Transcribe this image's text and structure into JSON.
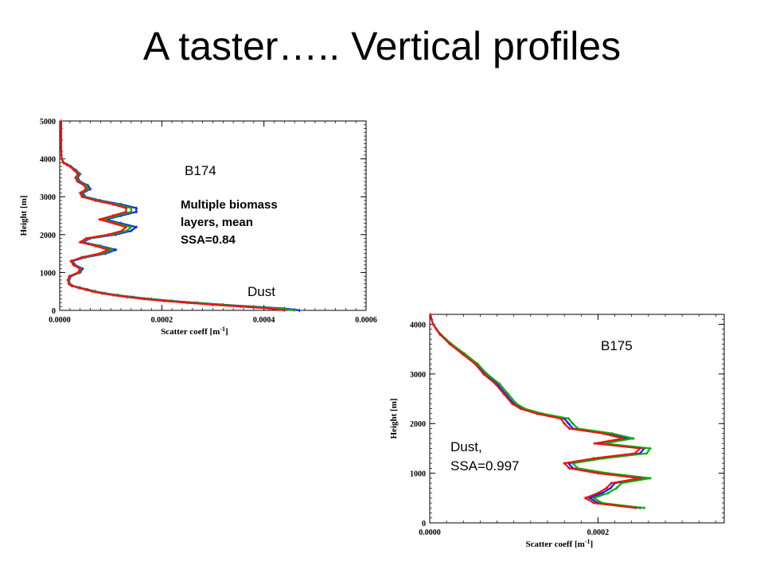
{
  "slide": {
    "title": "A taster….. Vertical profiles"
  },
  "colors": {
    "series_red": "#ee1111",
    "series_green": "#11aa11",
    "series_blue": "#1122ee"
  },
  "chart_data": [
    {
      "id": "b174",
      "type": "scatter",
      "xlabel": "Scatter coeff [m",
      "xlabel_sup": "-1",
      "xlabel_end": "]",
      "ylabel": "Height [m]",
      "xlim": [
        0,
        0.0006
      ],
      "ylim": [
        0,
        5000
      ],
      "xticks": [
        0,
        0.0002,
        0.0004,
        0.0006
      ],
      "xtick_labels": [
        "0.0000",
        "0.0002",
        "0.0004",
        "0.0006"
      ],
      "yticks": [
        0,
        1000,
        2000,
        3000,
        4000,
        5000
      ],
      "ytick_labels": [
        "0",
        "1000",
        "2000",
        "3000",
        "4000",
        "5000"
      ],
      "annotations": {
        "label": "B174",
        "note_lines": [
          "Multiple biomass",
          "layers, mean",
          "SSA=0.84"
        ],
        "bottom_label": "Dust"
      },
      "series": [
        {
          "color": "#1122ee",
          "y": [
            0,
            50,
            100,
            150,
            200,
            250,
            300,
            350,
            400,
            450,
            500,
            550,
            600,
            650,
            700,
            800,
            900,
            1000,
            1100,
            1200,
            1300,
            1400,
            1500,
            1600,
            1700,
            1800,
            1900,
            2000,
            2100,
            2200,
            2300,
            2400,
            2500,
            2600,
            2700,
            2800,
            2900,
            3000,
            3100,
            3200,
            3300,
            3400,
            3500,
            3600,
            3700,
            3800,
            3850,
            3900,
            4000,
            4200,
            4500,
            4800,
            5000
          ],
          "x": [
            0.00047,
            0.00044,
            0.00038,
            0.00032,
            0.00027,
            0.00022,
            0.00018,
            0.000145,
            0.000115,
            9e-05,
            7e-05,
            5.5e-05,
            4e-05,
            2.5e-05,
            2e-05,
            1.8e-05,
            2.2e-05,
            4e-05,
            4.5e-05,
            3e-05,
            2.5e-05,
            5e-05,
            9e-05,
            0.00011,
            8e-05,
            4.5e-05,
            6e-05,
            0.00011,
            0.00014,
            0.00015,
            0.00012,
            9e-05,
            0.00012,
            0.00015,
            0.00015,
            0.00012,
            8e-05,
            5e-05,
            4.5e-05,
            6e-05,
            5.5e-05,
            4e-05,
            3.5e-05,
            4e-05,
            3.2e-05,
            2.2e-05,
            1.5e-05,
            8e-06,
            4e-06,
            3e-06,
            3e-06,
            3e-06,
            3e-06
          ]
        },
        {
          "color": "#11aa11",
          "y": [
            0,
            50,
            100,
            150,
            200,
            250,
            300,
            350,
            400,
            450,
            500,
            550,
            600,
            650,
            700,
            800,
            900,
            1000,
            1100,
            1200,
            1300,
            1400,
            1500,
            1600,
            1700,
            1800,
            1900,
            2000,
            2100,
            2200,
            2300,
            2400,
            2500,
            2600,
            2700,
            2800,
            2900,
            3000,
            3100,
            3200,
            3300,
            3400,
            3500,
            3600,
            3700,
            3800,
            3850,
            3900,
            4000,
            4200,
            4500,
            4800,
            5000
          ],
          "x": [
            0.00046,
            0.00043,
            0.00037,
            0.000315,
            0.000265,
            0.000215,
            0.000175,
            0.00014,
            0.000112,
            8.7e-05,
            6.8e-05,
            5.3e-05,
            3.8e-05,
            2.4e-05,
            1.9e-05,
            1.7e-05,
            2e-05,
            3.8e-05,
            4.2e-05,
            2.8e-05,
            2.3e-05,
            4.6e-05,
            8.4e-05,
            0.000103,
            7.5e-05,
            4.2e-05,
            5.6e-05,
            0.000103,
            0.000131,
            0.00014,
            0.000112,
            8.4e-05,
            0.000112,
            0.00014,
            0.00014,
            0.000112,
            7.5e-05,
            4.7e-05,
            4.2e-05,
            5.6e-05,
            5.2e-05,
            3.8e-05,
            3.3e-05,
            3.8e-05,
            3e-05,
            2.1e-05,
            1.4e-05,
            8e-06,
            4e-06,
            3e-06,
            3e-06,
            3e-06,
            3e-06
          ]
        },
        {
          "color": "#ee1111",
          "y": [
            0,
            50,
            100,
            150,
            200,
            250,
            300,
            350,
            400,
            450,
            500,
            550,
            600,
            650,
            700,
            800,
            900,
            1000,
            1100,
            1200,
            1300,
            1400,
            1500,
            1600,
            1700,
            1800,
            1900,
            2000,
            2100,
            2200,
            2300,
            2400,
            2500,
            2600,
            2700,
            2800,
            2900,
            3000,
            3100,
            3200,
            3300,
            3400,
            3500,
            3600,
            3700,
            3800,
            3850,
            3900,
            4000,
            4200,
            4500,
            4800,
            5000
          ],
          "x": [
            0.00044,
            0.00041,
            0.000355,
            0.0003,
            0.00025,
            0.000205,
            0.000165,
            0.000132,
            0.000105,
            8.2e-05,
            6.4e-05,
            5e-05,
            3.6e-05,
            2.3e-05,
            1.8e-05,
            1.6e-05,
            1.9e-05,
            3.6e-05,
            4e-05,
            2.7e-05,
            2.2e-05,
            4.3e-05,
            7.8e-05,
            9.5e-05,
            7e-05,
            4e-05,
            5.2e-05,
            9.5e-05,
            0.000122,
            0.00013,
            0.000105,
            7.8e-05,
            0.000104,
            0.00013,
            0.00013,
            0.000104,
            7e-05,
            4.4e-05,
            4e-05,
            5.2e-05,
            4.8e-05,
            3.5e-05,
            3.1e-05,
            3.6e-05,
            2.8e-05,
            2e-05,
            1.3e-05,
            7e-06,
            4e-06,
            3e-06,
            3e-06,
            3e-06,
            3e-06
          ]
        }
      ]
    },
    {
      "id": "b175",
      "type": "scatter",
      "xlabel": "Scatter coeff [m",
      "xlabel_sup": "-1",
      "xlabel_end": "]",
      "ylabel": "Height [m]",
      "xlim": [
        0,
        0.00035
      ],
      "ylim": [
        0,
        4200
      ],
      "xticks": [
        0,
        0.0002
      ],
      "xtick_labels": [
        "0.0000",
        "0.0002"
      ],
      "yticks": [
        0,
        1000,
        2000,
        3000,
        4000
      ],
      "ytick_labels": [
        "0",
        "1000",
        "2000",
        "3000",
        "4000"
      ],
      "annotations": {
        "label": "B175",
        "note_lines": [
          "Dust,",
          "SSA=0.997"
        ]
      },
      "series": [
        {
          "color": "#1122ee",
          "y": [
            300,
            400,
            500,
            600,
            700,
            800,
            900,
            1000,
            1100,
            1200,
            1300,
            1400,
            1500,
            1600,
            1700,
            1800,
            1900,
            2000,
            2100,
            2200,
            2300,
            2400,
            2600,
            2800,
            3000,
            3200,
            3400,
            3600,
            3800,
            3900,
            4000,
            4100,
            4200
          ],
          "x": [
            0.00025,
            0.0002,
            0.00019,
            0.000205,
            0.000215,
            0.00022,
            0.000255,
            0.000205,
            0.00017,
            0.000165,
            0.0002,
            0.00025,
            0.000255,
            0.0002,
            0.000235,
            0.00021,
            0.00017,
            0.000165,
            0.00016,
            0.00013,
            0.00011,
            0.0001,
            9e-05,
            8e-05,
            6.5e-05,
            5.5e-05,
            4e-05,
            2.5e-05,
            1.2e-05,
            8e-06,
            4e-06,
            2e-06,
            1e-06
          ]
        },
        {
          "color": "#11aa11",
          "y": [
            300,
            400,
            500,
            600,
            700,
            800,
            900,
            1000,
            1100,
            1200,
            1300,
            1400,
            1500,
            1600,
            1700,
            1800,
            1900,
            2000,
            2100,
            2200,
            2300,
            2400,
            2600,
            2800,
            3000,
            3200,
            3400,
            3600,
            3800,
            3900,
            4000,
            4100,
            4200
          ],
          "x": [
            0.000255,
            0.000205,
            0.000195,
            0.000212,
            0.000222,
            0.000228,
            0.000262,
            0.000212,
            0.000176,
            0.00017,
            0.000207,
            0.000258,
            0.000262,
            0.000207,
            0.000242,
            0.000217,
            0.000176,
            0.00017,
            0.000165,
            0.000134,
            0.000113,
            0.000103,
            9.3e-05,
            8.3e-05,
            6.8e-05,
            5.7e-05,
            4.2e-05,
            2.6e-05,
            1.3e-05,
            8e-06,
            4e-06,
            2e-06,
            1e-06
          ]
        },
        {
          "color": "#ee1111",
          "y": [
            300,
            400,
            500,
            600,
            700,
            800,
            900,
            1000,
            1100,
            1200,
            1300,
            1400,
            1500,
            1600,
            1700,
            1800,
            1900,
            2000,
            2100,
            2200,
            2300,
            2400,
            2600,
            2800,
            3000,
            3200,
            3400,
            3600,
            3800,
            3900,
            4000,
            4100,
            4200
          ],
          "x": [
            0.000245,
            0.000195,
            0.000185,
            0.0002,
            0.00021,
            0.000216,
            0.00025,
            0.0002,
            0.000166,
            0.00016,
            0.000195,
            0.000244,
            0.00025,
            0.000196,
            0.00023,
            0.000206,
            0.000166,
            0.00016,
            0.000156,
            0.000127,
            0.000108,
            9.8e-05,
            8.8e-05,
            7.8e-05,
            6.4e-05,
            5.4e-05,
            3.9e-05,
            2.4e-05,
            1.2e-05,
            8e-06,
            4e-06,
            2e-06,
            1e-06
          ]
        }
      ]
    }
  ]
}
